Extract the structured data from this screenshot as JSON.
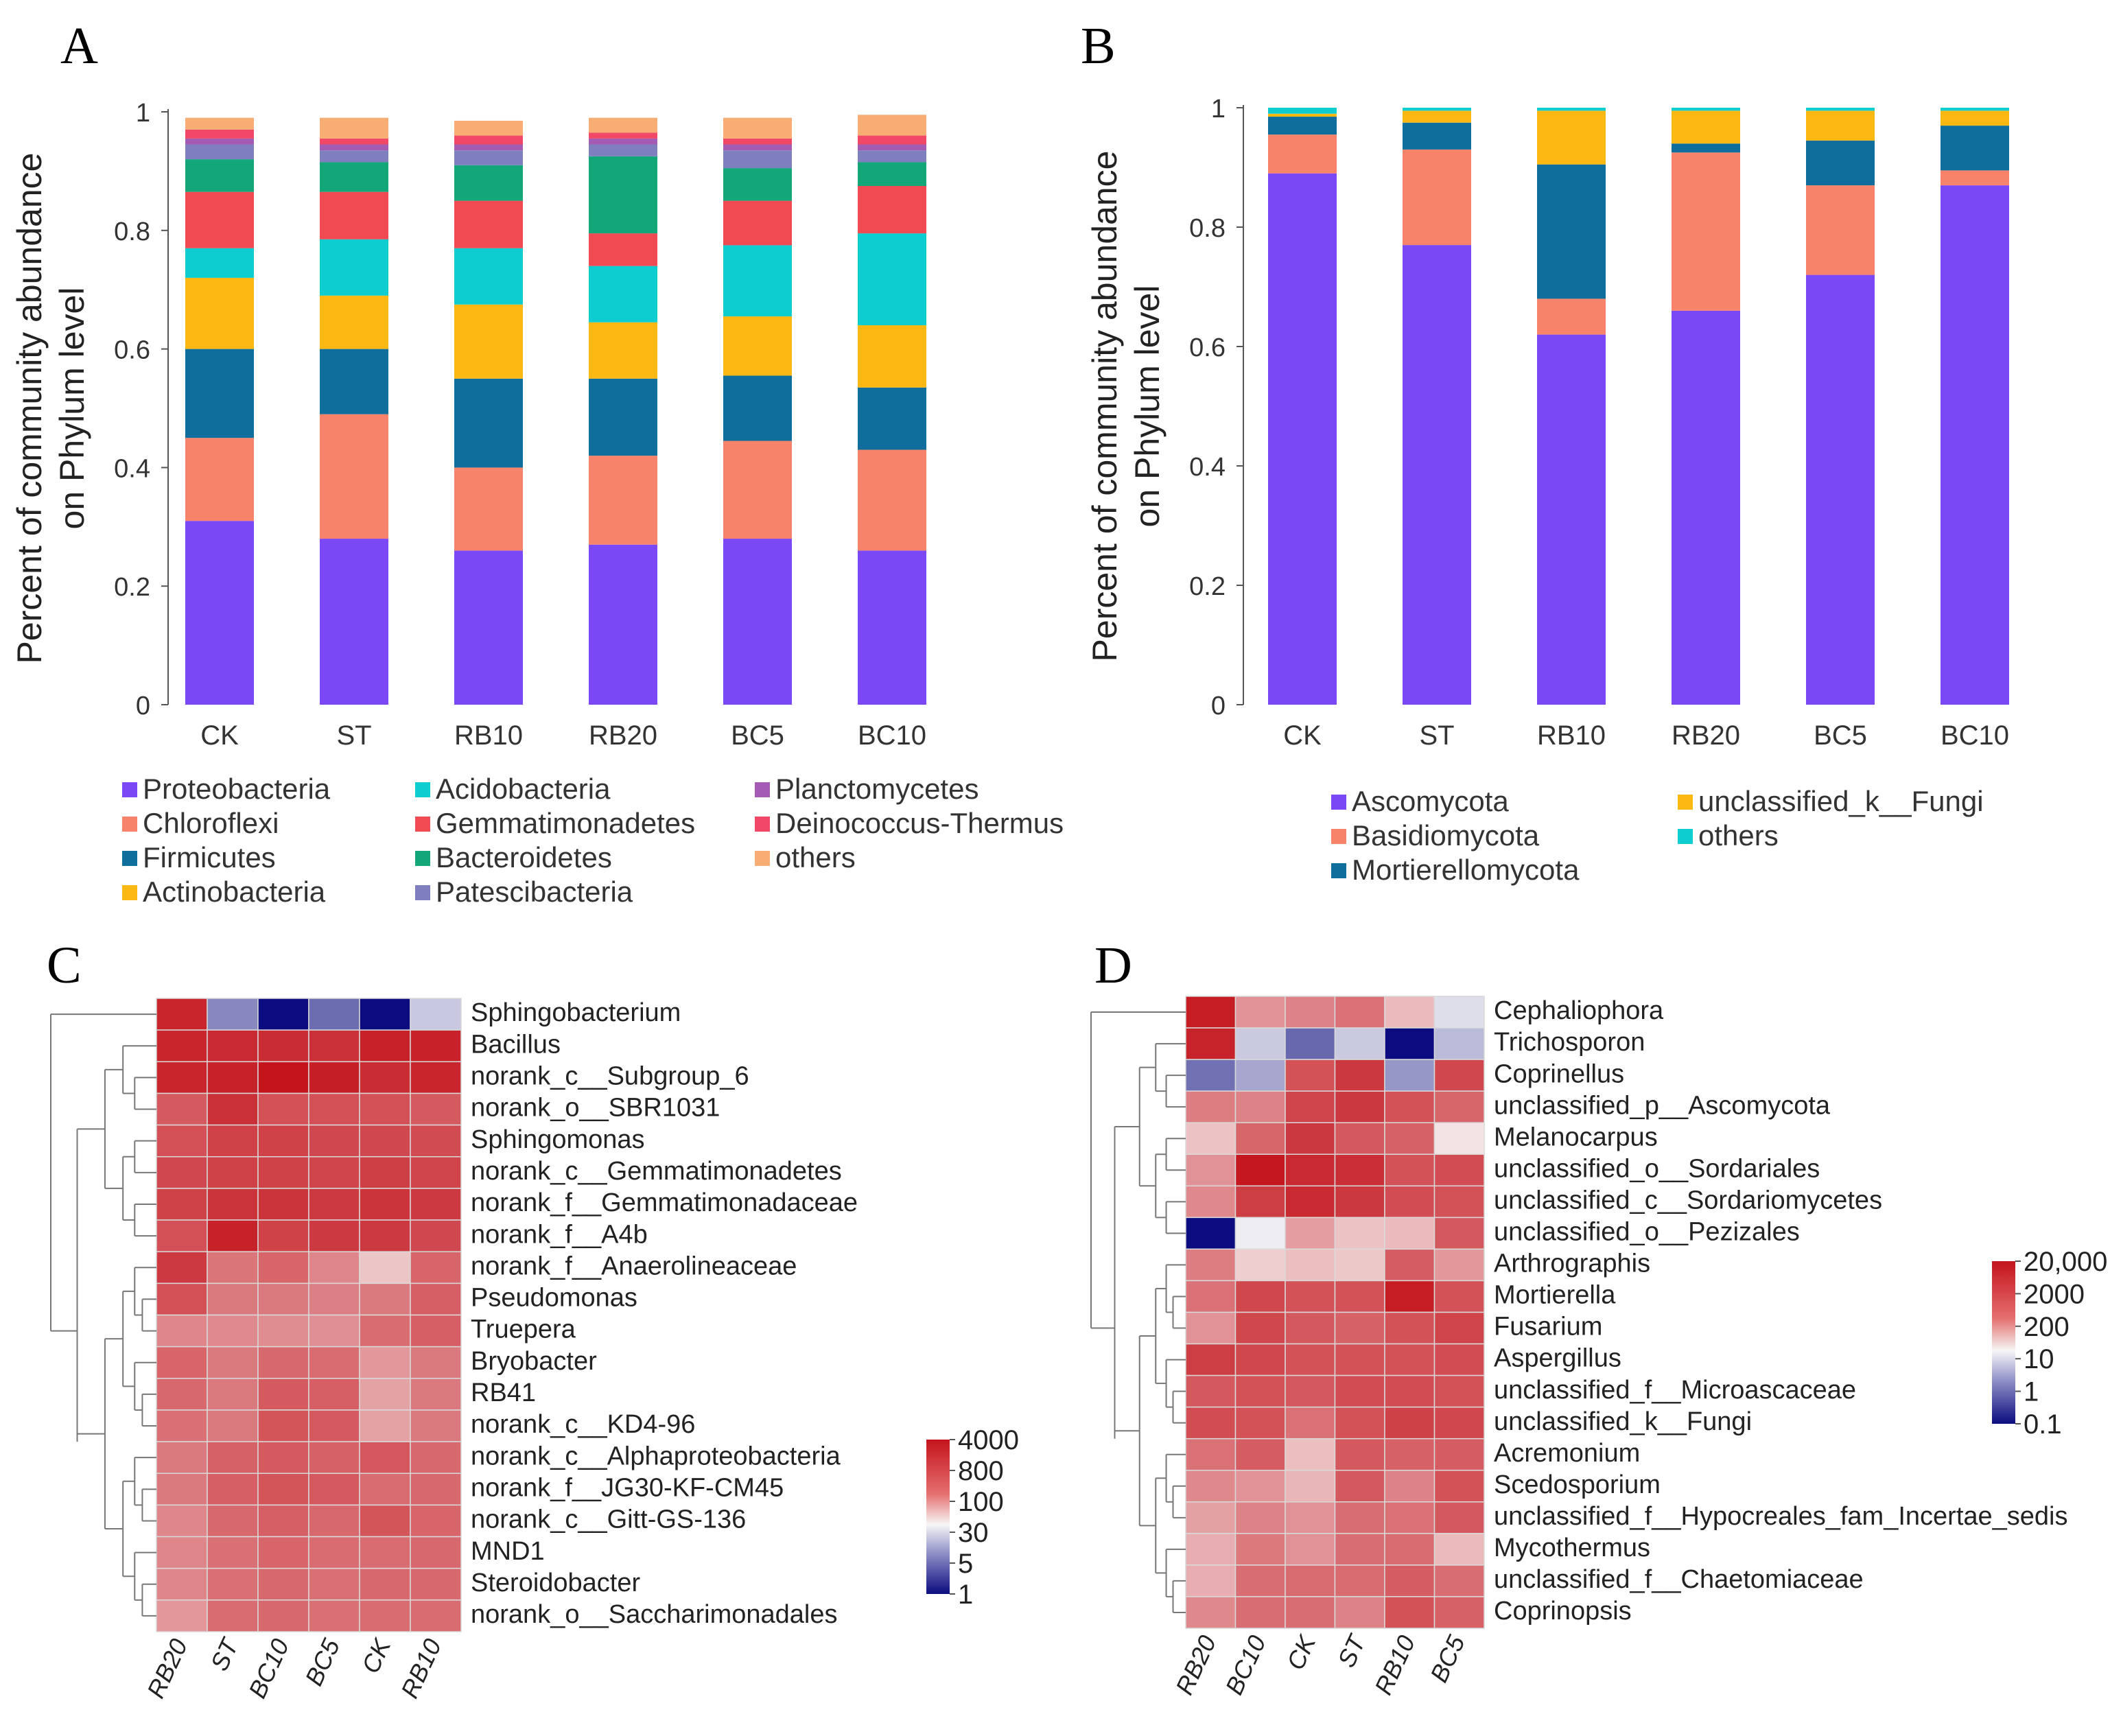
{
  "chart_data": [
    {
      "panel": "A",
      "type": "bar",
      "stacked": true,
      "ylabel": "Percent of community abundance on Phylum level",
      "ylabel_lines": [
        "Percent of community abundance",
        "on Phylum level"
      ],
      "ylim": [
        0,
        1
      ],
      "yticks": [
        "0",
        "0.2",
        "0.4",
        "0.6",
        "0.8",
        "1"
      ],
      "categories": [
        "CK",
        "ST",
        "RB10",
        "RB20",
        "BC5",
        "BC10"
      ],
      "series": [
        {
          "name": "Proteobacteria",
          "color": "#7a49f5",
          "values": [
            0.31,
            0.28,
            0.26,
            0.27,
            0.28,
            0.26
          ]
        },
        {
          "name": "Chloroflexi",
          "color": "#f7836a",
          "values": [
            0.14,
            0.21,
            0.14,
            0.15,
            0.165,
            0.17
          ]
        },
        {
          "name": "Firmicutes",
          "color": "#0f6e9c",
          "values": [
            0.15,
            0.11,
            0.15,
            0.13,
            0.11,
            0.105
          ]
        },
        {
          "name": "Actinobacteria",
          "color": "#fbb712",
          "values": [
            0.12,
            0.09,
            0.125,
            0.095,
            0.1,
            0.105
          ]
        },
        {
          "name": "Acidobacteria",
          "color": "#0ecdd0",
          "values": [
            0.05,
            0.095,
            0.095,
            0.095,
            0.12,
            0.155
          ]
        },
        {
          "name": "Gemmatimonadetes",
          "color": "#f04a52",
          "values": [
            0.095,
            0.08,
            0.08,
            0.055,
            0.075,
            0.08
          ]
        },
        {
          "name": "Bacteroidetes",
          "color": "#13a679",
          "values": [
            0.055,
            0.05,
            0.06,
            0.13,
            0.055,
            0.04
          ]
        },
        {
          "name": "Patescibacteria",
          "color": "#7f7fc0",
          "values": [
            0.025,
            0.02,
            0.025,
            0.02,
            0.03,
            0.02
          ]
        },
        {
          "name": "Planctomycetes",
          "color": "#a35bb4",
          "values": [
            0.01,
            0.01,
            0.01,
            0.01,
            0.01,
            0.01
          ]
        },
        {
          "name": "Deinococcus-Thermus",
          "color": "#f04866",
          "values": [
            0.015,
            0.01,
            0.015,
            0.01,
            0.01,
            0.015
          ]
        },
        {
          "name": "others",
          "color": "#f8ad74",
          "values": [
            0.02,
            0.035,
            0.025,
            0.025,
            0.035,
            0.035
          ]
        }
      ],
      "legend_columns": [
        [
          "Proteobacteria",
          "Chloroflexi",
          "Firmicutes",
          "Actinobacteria"
        ],
        [
          "Acidobacteria",
          "Gemmatimonadetes",
          "Bacteroidetes",
          "Patescibacteria"
        ],
        [
          "Planctomycetes",
          "Deinococcus-Thermus",
          "others"
        ]
      ]
    },
    {
      "panel": "B",
      "type": "bar",
      "stacked": true,
      "ylabel": "Percent of community abundance on Phylum level",
      "ylabel_lines": [
        "Percent of community abundance",
        "on Phylum level"
      ],
      "ylim": [
        0,
        1
      ],
      "yticks": [
        "0",
        "0.2",
        "0.4",
        "0.6",
        "0.8",
        "1"
      ],
      "categories": [
        "CK",
        "ST",
        "RB10",
        "RB20",
        "BC5",
        "BC10"
      ],
      "series": [
        {
          "name": "Ascomycota",
          "color": "#7a49f5",
          "values": [
            0.89,
            0.77,
            0.62,
            0.66,
            0.72,
            0.87
          ]
        },
        {
          "name": "Basidiomycota",
          "color": "#f7836a",
          "values": [
            0.065,
            0.16,
            0.06,
            0.265,
            0.15,
            0.025
          ]
        },
        {
          "name": "Mortierellomycota",
          "color": "#0f6e9c",
          "values": [
            0.03,
            0.045,
            0.225,
            0.015,
            0.075,
            0.075
          ]
        },
        {
          "name": "unclassified_k__Fungi",
          "color": "#fbb712",
          "values": [
            0.005,
            0.02,
            0.09,
            0.055,
            0.05,
            0.025
          ]
        },
        {
          "name": "others",
          "color": "#0ecdd0",
          "values": [
            0.01,
            0.005,
            0.005,
            0.005,
            0.005,
            0.005
          ]
        }
      ],
      "legend_columns": [
        [
          "Ascomycota",
          "Basidiomycota",
          "Mortierellomycota"
        ],
        [
          "unclassified_k__Fungi",
          "others"
        ]
      ]
    },
    {
      "panel": "C",
      "type": "heatmap",
      "columns": [
        "RB20",
        "ST",
        "BC10",
        "BC5",
        "CK",
        "RB10"
      ],
      "rows": [
        "Sphingobacterium",
        "Bacillus",
        "norank_c__Subgroup_6",
        "norank_o__SBR1031",
        "Sphingomonas",
        "norank_c__Gemmatimonadetes",
        "norank_f__Gemmatimonadaceae",
        "norank_f__A4b",
        "norank_f__Anaerolineaceae",
        "Pseudomonas",
        "Truepera",
        "Bryobacter",
        "RB41",
        "norank_c__KD4-96",
        "norank_c__Alphaproteobacteria",
        "norank_f__JG30-KF-CM45",
        "norank_c__Gitt-GS-136",
        "MND1",
        "Steroidobacter",
        "norank_o__Saccharimonadales"
      ],
      "values": [
        [
          2800,
          6,
          1,
          4,
          1,
          15
        ],
        [
          2800,
          2500,
          2400,
          2200,
          3000,
          3000
        ],
        [
          2800,
          3000,
          4000,
          3200,
          2400,
          2800
        ],
        [
          900,
          2200,
          1100,
          1100,
          1100,
          900
        ],
        [
          1100,
          1500,
          1500,
          1300,
          1300,
          1200
        ],
        [
          1300,
          1500,
          1500,
          1400,
          1600,
          1400
        ],
        [
          1500,
          2000,
          2000,
          1800,
          2000,
          1800
        ],
        [
          1100,
          3000,
          1500,
          1800,
          1800,
          1300
        ],
        [
          1800,
          500,
          700,
          350,
          90,
          700
        ],
        [
          1100,
          450,
          450,
          400,
          450,
          800
        ],
        [
          350,
          320,
          300,
          280,
          600,
          800
        ],
        [
          700,
          450,
          650,
          600,
          240,
          450
        ],
        [
          650,
          450,
          900,
          800,
          190,
          450
        ],
        [
          550,
          450,
          1000,
          900,
          190,
          450
        ],
        [
          450,
          750,
          900,
          750,
          950,
          650
        ],
        [
          450,
          800,
          1000,
          900,
          600,
          650
        ],
        [
          350,
          650,
          800,
          650,
          1000,
          700
        ],
        [
          350,
          550,
          700,
          600,
          600,
          650
        ],
        [
          350,
          550,
          650,
          550,
          650,
          650
        ],
        [
          240,
          600,
          650,
          550,
          600,
          600
        ]
      ],
      "colorbar": {
        "labels": [
          "4000",
          "800",
          "100",
          "30",
          "5",
          "1"
        ],
        "min": 1,
        "max": 4000,
        "mid": 30
      }
    },
    {
      "panel": "D",
      "type": "heatmap",
      "columns": [
        "RB20",
        "BC10",
        "CK",
        "ST",
        "RB10",
        "BC5"
      ],
      "rows": [
        "Cephaliophora",
        "Trichosporon",
        "Coprinellus",
        "unclassified_p__Ascomycota",
        "Melanocarpus",
        "unclassified_o__Sordariales",
        "unclassified_c__Sordariomycetes",
        "unclassified_o__Pezizales",
        "Arthrographis",
        "Mortierella",
        "Fusarium",
        "Aspergillus",
        "unclassified_f__Microascaceae",
        "unclassified_k__Fungi",
        "Acremonium",
        "Scedosporium",
        "unclassified_f__Hypocreales_fam_Incertae_sedis",
        "Mycothermus",
        "unclassified_f__Chaetomiaceae",
        "Coprinopsis"
      ],
      "values": [
        [
          15000,
          300,
          500,
          900,
          80,
          6
        ],
        [
          12000,
          4,
          0.6,
          4,
          0.1,
          3
        ],
        [
          0.7,
          2,
          2500,
          6000,
          1.5,
          3500
        ],
        [
          600,
          500,
          4000,
          6000,
          2500,
          1300
        ],
        [
          60,
          1300,
          6000,
          2000,
          1500,
          20
        ],
        [
          300,
          18000,
          10000,
          8000,
          2500,
          3000
        ],
        [
          400,
          5000,
          10000,
          6000,
          3000,
          2500
        ],
        [
          0.1,
          8,
          200,
          60,
          80,
          2000
        ],
        [
          600,
          40,
          70,
          50,
          1800,
          250
        ],
        [
          900,
          3500,
          2500,
          2500,
          15000,
          2500
        ],
        [
          300,
          3500,
          2000,
          1500,
          2500,
          4000
        ],
        [
          5000,
          3500,
          2500,
          2500,
          2500,
          3000
        ],
        [
          2000,
          2500,
          2000,
          3000,
          3000,
          2500
        ],
        [
          3000,
          2500,
          900,
          2500,
          4500,
          3500
        ],
        [
          900,
          1800,
          70,
          2000,
          1500,
          1800
        ],
        [
          400,
          300,
          90,
          2000,
          500,
          2500
        ],
        [
          180,
          500,
          300,
          1000,
          900,
          2000
        ],
        [
          120,
          700,
          300,
          1000,
          1100,
          80
        ],
        [
          120,
          1000,
          1100,
          1100,
          1800,
          1000
        ],
        [
          400,
          1000,
          1000,
          500,
          2500,
          1500
        ]
      ],
      "colorbar": {
        "labels": [
          "20,000",
          "2000",
          "200",
          "10",
          "1",
          "0.1"
        ],
        "min": 0.1,
        "max": 20000,
        "mid": 10
      }
    }
  ],
  "panel_labels": [
    "A",
    "B",
    "C",
    "D"
  ]
}
